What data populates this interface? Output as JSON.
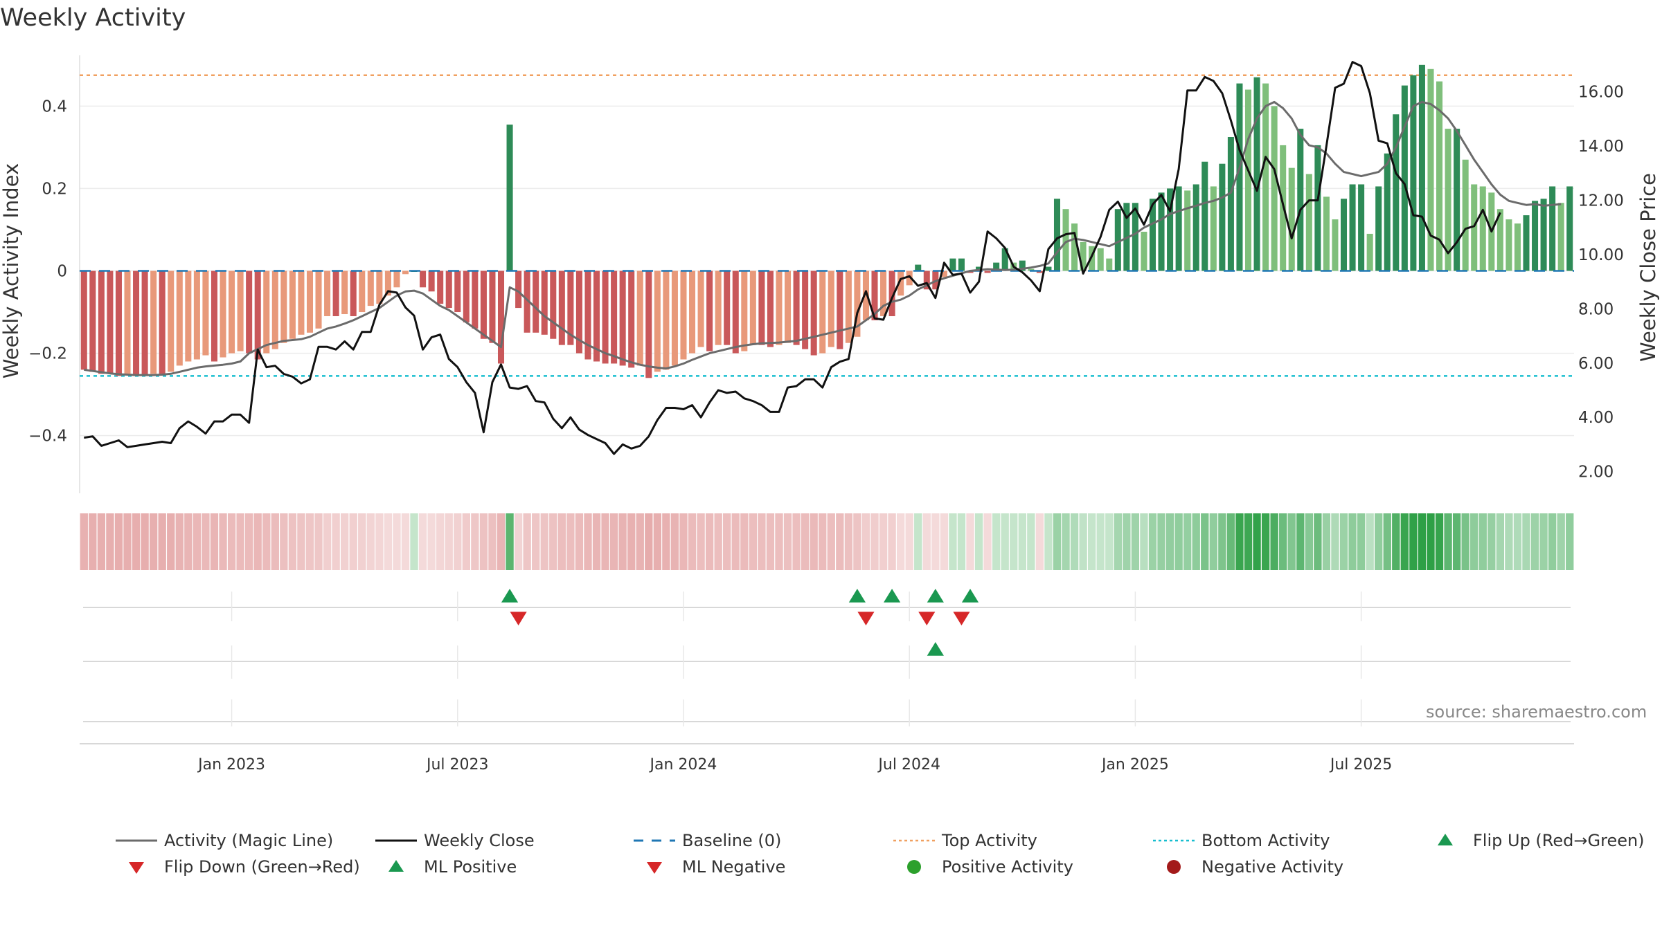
{
  "title": "Weekly Activity",
  "source": "source: sharemaestro.com",
  "colors": {
    "red_dark": "#c9585a",
    "red_light": "#e8997a",
    "green_dark": "#2e8b57",
    "green_light": "#7fbf7b",
    "magic_line": "#6b6b6b",
    "weekly_close": "#111111",
    "baseline": "#1f77b4",
    "top_activity": "#f0a060",
    "bottom_activity": "#17becf",
    "marker_green": "#1a9850",
    "marker_red": "#d62728",
    "dot_green": "#2ca02c",
    "dot_red": "#a31a1a"
  },
  "chart_data": {
    "type": "bar",
    "title": "Weekly Activity",
    "ylabel": "Weekly Activity Index",
    "y2label": "Weekly Close Price",
    "ylim": [
      -0.54,
      0.54
    ],
    "y2lim": [
      1.2,
      17.6
    ],
    "yticks": [
      -0.4,
      -0.2,
      0,
      0.2,
      0.4
    ],
    "ytick_labels": [
      "−0.4",
      "−0.2",
      "0",
      "0.2",
      "0.4"
    ],
    "y2ticks": [
      2,
      4,
      6,
      8,
      10,
      12,
      14,
      16
    ],
    "y2tick_labels": [
      "2.00",
      "4.00",
      "6.00",
      "8.00",
      "10.00",
      "12.00",
      "14.00",
      "16.00"
    ],
    "xticks": [
      {
        "label": "Jan 2023",
        "week": 17
      },
      {
        "label": "Jul 2023",
        "week": 43
      },
      {
        "label": "Jan 2024",
        "week": 69
      },
      {
        "label": "Jul 2024",
        "week": 95
      },
      {
        "label": "Jan 2025",
        "week": 121
      },
      {
        "label": "Jul 2025",
        "week": 147
      }
    ],
    "top_activity": 0.475,
    "bottom_activity": -0.255,
    "activity": [
      -0.24,
      -0.245,
      -0.25,
      -0.25,
      -0.255,
      -0.25,
      -0.255,
      -0.255,
      -0.25,
      -0.25,
      -0.245,
      -0.23,
      -0.22,
      -0.215,
      -0.205,
      -0.22,
      -0.21,
      -0.2,
      -0.195,
      -0.2,
      -0.215,
      -0.2,
      -0.19,
      -0.175,
      -0.165,
      -0.155,
      -0.15,
      -0.14,
      -0.11,
      -0.11,
      -0.105,
      -0.11,
      -0.1,
      -0.085,
      -0.08,
      -0.06,
      -0.04,
      -0.008,
      0,
      -0.04,
      -0.05,
      -0.08,
      -0.09,
      -0.1,
      -0.125,
      -0.14,
      -0.165,
      -0.175,
      -0.225,
      0.355,
      -0.09,
      -0.15,
      -0.15,
      -0.155,
      -0.165,
      -0.18,
      -0.18,
      -0.2,
      -0.215,
      -0.22,
      -0.225,
      -0.225,
      -0.23,
      -0.235,
      -0.23,
      -0.26,
      -0.245,
      -0.24,
      -0.23,
      -0.215,
      -0.2,
      -0.185,
      -0.195,
      -0.18,
      -0.18,
      -0.2,
      -0.195,
      -0.18,
      -0.18,
      -0.185,
      -0.18,
      -0.175,
      -0.18,
      -0.19,
      -0.205,
      -0.2,
      -0.185,
      -0.19,
      -0.175,
      -0.16,
      -0.12,
      -0.12,
      -0.11,
      -0.11,
      -0.06,
      -0.035,
      0.015,
      -0.045,
      -0.045,
      -0.015,
      0.03,
      0.03,
      -0.005,
      0.01,
      -0.005,
      0.02,
      0.055,
      0.02,
      0.025,
      0.005,
      -0.005,
      0.01,
      0.175,
      0.15,
      0.115,
      0.07,
      0.06,
      0.055,
      0.03,
      0.15,
      0.165,
      0.165,
      0.095,
      0.175,
      0.19,
      0.2,
      0.205,
      0.195,
      0.21,
      0.265,
      0.205,
      0.26,
      0.325,
      0.455,
      0.44,
      0.47,
      0.455,
      0.4,
      0.305,
      0.25,
      0.345,
      0.235,
      0.305,
      0.18,
      0.125,
      0.175,
      0.21,
      0.21,
      0.09,
      0.205,
      0.285,
      0.38,
      0.45,
      0.475,
      0.5,
      0.49,
      0.46,
      0.345,
      0.345,
      0.27,
      0.21,
      0.205,
      0.19,
      0.15,
      0.125,
      0.115,
      0.135,
      0.17,
      0.175,
      0.205,
      0.165,
      0.205
    ],
    "magic_line": [
      -0.24,
      -0.243,
      -0.246,
      -0.249,
      -0.251,
      -0.252,
      -0.253,
      -0.253,
      -0.253,
      -0.252,
      -0.25,
      -0.245,
      -0.24,
      -0.235,
      -0.232,
      -0.23,
      -0.228,
      -0.225,
      -0.22,
      -0.2,
      -0.19,
      -0.18,
      -0.175,
      -0.17,
      -0.168,
      -0.166,
      -0.16,
      -0.15,
      -0.14,
      -0.135,
      -0.128,
      -0.12,
      -0.11,
      -0.1,
      -0.09,
      -0.075,
      -0.06,
      -0.05,
      -0.048,
      -0.055,
      -0.07,
      -0.085,
      -0.095,
      -0.11,
      -0.125,
      -0.14,
      -0.155,
      -0.17,
      -0.185,
      -0.04,
      -0.05,
      -0.07,
      -0.09,
      -0.11,
      -0.125,
      -0.14,
      -0.155,
      -0.168,
      -0.18,
      -0.19,
      -0.2,
      -0.207,
      -0.215,
      -0.222,
      -0.228,
      -0.232,
      -0.235,
      -0.237,
      -0.232,
      -0.225,
      -0.216,
      -0.208,
      -0.2,
      -0.195,
      -0.19,
      -0.185,
      -0.181,
      -0.178,
      -0.176,
      -0.175,
      -0.174,
      -0.172,
      -0.17,
      -0.165,
      -0.16,
      -0.155,
      -0.15,
      -0.145,
      -0.14,
      -0.135,
      -0.12,
      -0.105,
      -0.085,
      -0.075,
      -0.07,
      -0.06,
      -0.045,
      -0.035,
      -0.025,
      -0.018,
      -0.012,
      -0.006,
      0,
      0.002,
      0.004,
      0.003,
      0.002,
      0.003,
      0.005,
      0.008,
      0.012,
      0.018,
      0.045,
      0.07,
      0.078,
      0.075,
      0.07,
      0.065,
      0.06,
      0.07,
      0.08,
      0.09,
      0.105,
      0.115,
      0.125,
      0.138,
      0.145,
      0.152,
      0.158,
      0.165,
      0.17,
      0.178,
      0.19,
      0.25,
      0.32,
      0.37,
      0.4,
      0.41,
      0.395,
      0.37,
      0.33,
      0.305,
      0.3,
      0.285,
      0.26,
      0.24,
      0.235,
      0.23,
      0.235,
      0.24,
      0.26,
      0.3,
      0.35,
      0.4,
      0.41,
      0.405,
      0.39,
      0.37,
      0.34,
      0.305,
      0.27,
      0.24,
      0.21,
      0.185,
      0.17,
      0.165,
      0.16,
      0.162,
      0.158,
      0.16,
      0.162
    ],
    "weekly_close": [
      3.25,
      3.3,
      2.95,
      3.05,
      3.15,
      2.9,
      2.95,
      3,
      3.05,
      3.1,
      3.05,
      3.6,
      3.85,
      3.65,
      3.4,
      3.85,
      3.85,
      4.1,
      4.1,
      3.8,
      6.5,
      5.85,
      5.9,
      5.6,
      5.5,
      5.25,
      5.4,
      6.6,
      6.6,
      6.5,
      6.8,
      6.5,
      7.15,
      7.15,
      8.15,
      8.65,
      8.6,
      8.05,
      7.75,
      6.5,
      6.95,
      7.05,
      6.15,
      5.85,
      5.3,
      4.9,
      3.45,
      5.3,
      5.95,
      5.1,
      5.05,
      5.15,
      4.6,
      4.55,
      3.95,
      3.6,
      4,
      3.55,
      3.35,
      3.2,
      3.05,
      2.65,
      3,
      2.85,
      2.95,
      3.3,
      3.9,
      4.35,
      4.35,
      4.3,
      4.45,
      4,
      4.55,
      5,
      4.9,
      4.95,
      4.7,
      4.6,
      4.45,
      4.2,
      4.2,
      5.1,
      5.15,
      5.4,
      5.4,
      5.1,
      5.85,
      6.05,
      6.15,
      7.85,
      8.65,
      7.65,
      7.6,
      8.4,
      9.1,
      9.2,
      8.85,
      8.95,
      8.4,
      9.7,
      9.25,
      9.3,
      8.6,
      9,
      10.85,
      10.6,
      10.25,
      9.55,
      9.35,
      9.05,
      8.65,
      10.2,
      10.6,
      10.75,
      10.8,
      9.3,
      9.95,
      10.65,
      11.65,
      11.95,
      11.35,
      11.7,
      11.1,
      11.85,
      12.2,
      11.6,
      13.15,
      16.05,
      16.05,
      16.55,
      16.4,
      15.95,
      14.95,
      13.85,
      13.1,
      12.35,
      13.6,
      13.15,
      11.85,
      10.6,
      11.65,
      12,
      12,
      14,
      16.15,
      16.3,
      17.1,
      16.95,
      15.95,
      14.2,
      14.1,
      13,
      12.6,
      11.45,
      11.4,
      10.7,
      10.55,
      10.05,
      10.45,
      10.95,
      11.05,
      11.65,
      10.85,
      11.55
    ],
    "markers": [
      {
        "row": 1,
        "week": 49,
        "shape": "up",
        "color": "green"
      },
      {
        "row": 1,
        "week": 50,
        "shape": "down",
        "color": "red"
      },
      {
        "row": 1,
        "week": 89,
        "shape": "up",
        "color": "green"
      },
      {
        "row": 1,
        "week": 90,
        "shape": "down",
        "color": "red"
      },
      {
        "row": 1,
        "week": 93,
        "shape": "up",
        "color": "green"
      },
      {
        "row": 1,
        "week": 97,
        "shape": "down",
        "color": "red"
      },
      {
        "row": 1,
        "week": 98,
        "shape": "up",
        "color": "green"
      },
      {
        "row": 1,
        "week": 101,
        "shape": "down",
        "color": "red"
      },
      {
        "row": 1,
        "week": 102,
        "shape": "up",
        "color": "green"
      },
      {
        "row": 2,
        "week": 98,
        "shape": "up",
        "color": "green"
      }
    ],
    "legend": [
      {
        "label": "Activity (Magic Line)",
        "kind": "line",
        "color": "#6b6b6b"
      },
      {
        "label": "Weekly Close",
        "kind": "line",
        "color": "#111111"
      },
      {
        "label": "Baseline (0)",
        "kind": "dash",
        "color": "#1f77b4"
      },
      {
        "label": "Top Activity",
        "kind": "dot-line",
        "color": "#f0a060"
      },
      {
        "label": "Bottom Activity",
        "kind": "dot-line",
        "color": "#17becf"
      },
      {
        "label": "Flip Up (Red→Green)",
        "kind": "tri-up",
        "color": "#1a9850"
      },
      {
        "label": "Flip Down (Green→Red)",
        "kind": "tri-down",
        "color": "#d62728"
      },
      {
        "label": "ML Positive",
        "kind": "tri-up",
        "color": "#1a9850"
      },
      {
        "label": "ML Negative",
        "kind": "tri-down",
        "color": "#d62728"
      },
      {
        "label": "Positive Activity",
        "kind": "circle",
        "color": "#2ca02c"
      },
      {
        "label": "Negative Activity",
        "kind": "circle",
        "color": "#a31a1a"
      }
    ]
  }
}
